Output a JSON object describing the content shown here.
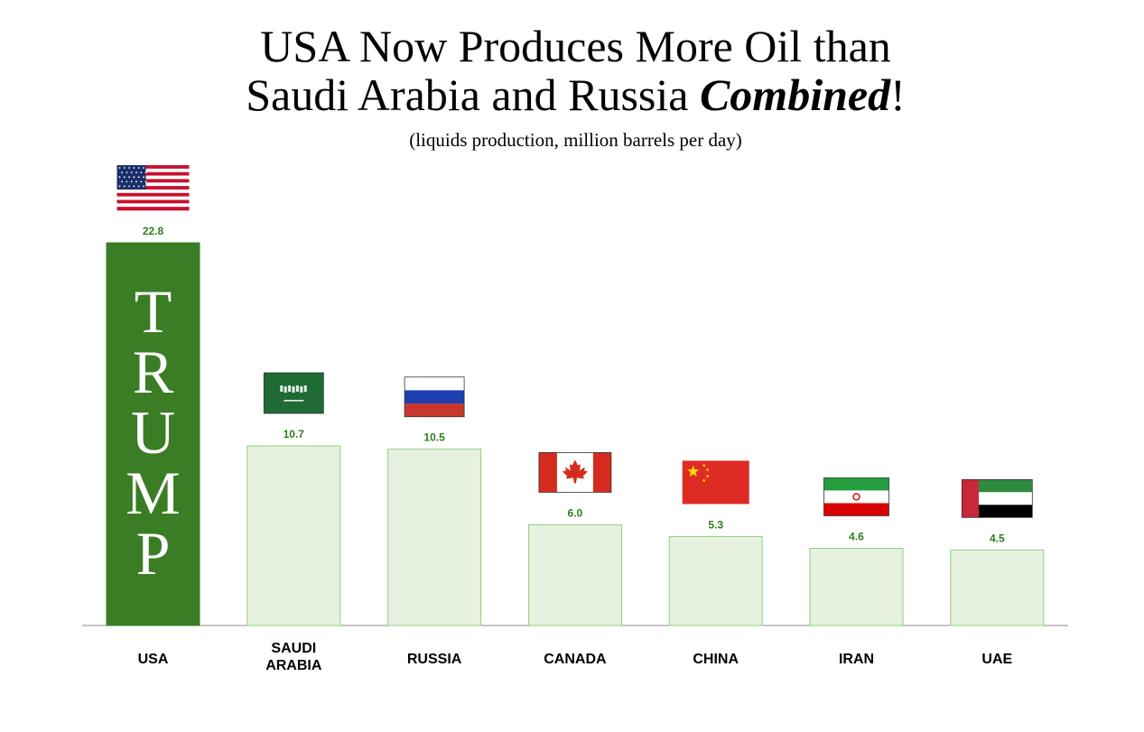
{
  "title": {
    "line1": "USA Now Produces More Oil than",
    "line2_start": "Saudi Arabia and Russia ",
    "line2_emphasis": "Combined",
    "line2_end": "!"
  },
  "subtitle": "(liquids production, million barrels per day)",
  "colors": {
    "highlight_fill": "#3a7d24",
    "bar_fill": "#e6f2df",
    "bar_stroke": "#8fcf80",
    "value_label": "#2e7d1e"
  },
  "chart_data": {
    "type": "bar",
    "categories": [
      "USA",
      "SAUDI ARABIA",
      "RUSSIA",
      "CANADA",
      "CHINA",
      "IRAN",
      "UAE"
    ],
    "values": [
      22.8,
      10.7,
      10.5,
      6.0,
      5.3,
      4.6,
      4.5
    ],
    "value_labels": [
      "22.8",
      "10.7",
      "10.5",
      "6.0",
      "5.3",
      "4.6",
      "4.5"
    ],
    "highlight_category": "USA",
    "highlight_bar_text": "TRUMP",
    "flags": [
      "usa-flag",
      "saudi-arabia-flag",
      "russia-flag",
      "canada-flag",
      "china-flag",
      "iran-flag",
      "uae-flag"
    ],
    "title": "USA Now Produces More Oil than Saudi Arabia and Russia Combined!",
    "subtitle": "(liquids production, million barrels per day)",
    "xlabel": "",
    "ylabel": "",
    "ylim": [
      0,
      22.8
    ],
    "grid": false,
    "legend": "none"
  }
}
